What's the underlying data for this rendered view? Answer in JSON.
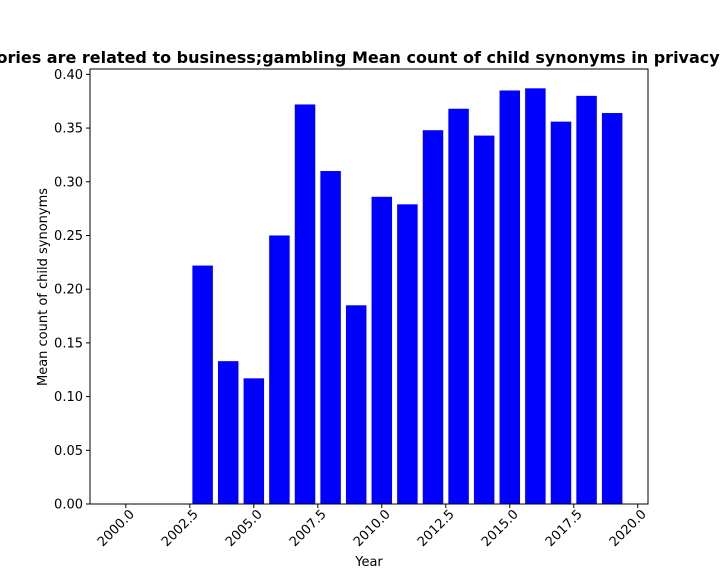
{
  "chart_data": {
    "type": "bar",
    "title": "Categories are related to business;gambling Mean count of child synonyms in privacy policies",
    "xlabel": "Year",
    "ylabel": "Mean count of child synonyms",
    "bar_color": "#0000ff",
    "x": [
      2003,
      2004,
      2005,
      2006,
      2007,
      2008,
      2009,
      2010,
      2011,
      2012,
      2013,
      2014,
      2015,
      2016,
      2017,
      2018,
      2019
    ],
    "values": [
      0.222,
      0.133,
      0.117,
      0.25,
      0.372,
      0.31,
      0.185,
      0.286,
      0.279,
      0.348,
      0.368,
      0.343,
      0.385,
      0.387,
      0.356,
      0.38,
      0.364
    ],
    "xlim": [
      1998.6,
      2020.4
    ],
    "ylim": [
      0,
      0.405
    ],
    "xticks": [
      2000.0,
      2002.5,
      2005.0,
      2007.5,
      2010.0,
      2012.5,
      2015.0,
      2017.5,
      2020.0
    ],
    "xtick_labels": [
      "2000.0",
      "2002.5",
      "2005.0",
      "2007.5",
      "2010.0",
      "2012.5",
      "2015.0",
      "2017.5",
      "2020.0"
    ],
    "yticks": [
      0.0,
      0.05,
      0.1,
      0.15,
      0.2,
      0.25,
      0.3,
      0.35,
      0.4
    ],
    "ytick_labels": [
      "0.00",
      "0.05",
      "0.10",
      "0.15",
      "0.20",
      "0.25",
      "0.30",
      "0.35",
      "0.40"
    ],
    "bar_width": 0.8,
    "grid": false,
    "legend": "none"
  }
}
